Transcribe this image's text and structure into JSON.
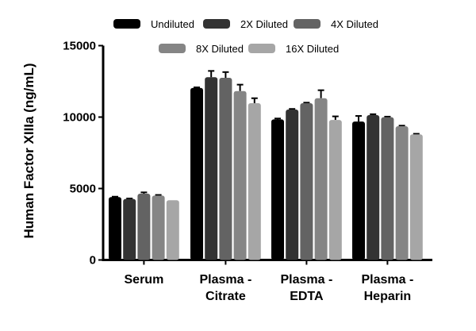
{
  "chart_data": {
    "type": "bar",
    "title": "",
    "xlabel": "",
    "ylabel": "Human Factor XIIIa (ng/mL)",
    "ylim": [
      0,
      15000
    ],
    "yticks": [
      0,
      5000,
      10000,
      15000
    ],
    "categories": [
      [
        "Serum"
      ],
      [
        "Plasma -",
        "Citrate"
      ],
      [
        "Plasma -",
        "EDTA"
      ],
      [
        "Plasma -",
        "Heparin"
      ]
    ],
    "legend_position": "top",
    "grid": false,
    "series": [
      {
        "name": "Undiluted",
        "color": "#000000",
        "values": [
          4400,
          12040,
          9840,
          9690
        ],
        "errors": [
          30,
          40,
          60,
          390
        ]
      },
      {
        "name": "2X Diluted",
        "color": "#333333",
        "values": [
          4270,
          12790,
          10530,
          10140
        ],
        "errors": [
          30,
          440,
          40,
          60
        ]
      },
      {
        "name": "4X Diluted",
        "color": "#636363",
        "values": [
          4640,
          12750,
          10970,
          9990
        ],
        "errors": [
          90,
          400,
          40,
          40
        ]
      },
      {
        "name": "8X Diluted",
        "color": "#858585",
        "values": [
          4510,
          11820,
          11320,
          9360
        ],
        "errors": [
          40,
          450,
          560,
          40
        ]
      },
      {
        "name": "16X Diluted",
        "color": "#a6a6a6",
        "values": [
          4180,
          10970,
          9800,
          8790
        ],
        "errors": [
          0,
          350,
          250,
          40
        ]
      }
    ]
  }
}
